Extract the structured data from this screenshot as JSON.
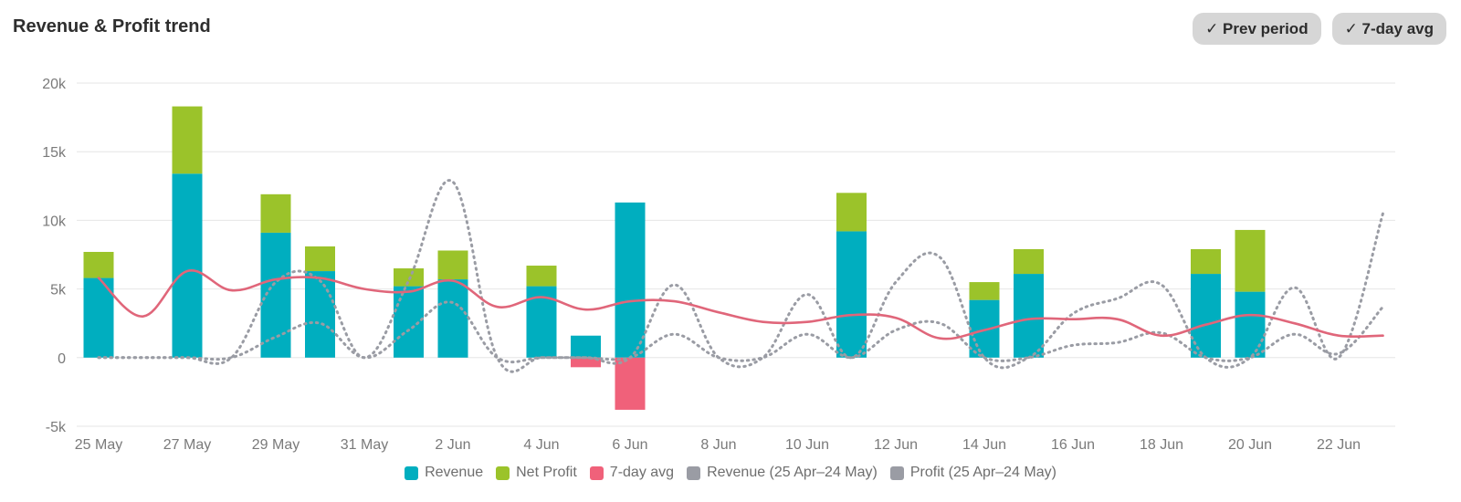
{
  "header": {
    "title": "Revenue & Profit trend",
    "toggles": [
      {
        "label": "✓ Prev period"
      },
      {
        "label": "✓ 7-day avg"
      }
    ]
  },
  "colors": {
    "revenue": "#00aebf",
    "profit": "#9bc32a",
    "negative": "#f0617a",
    "avg": "#e0667a",
    "prev": "#9a9ca4",
    "grid": "#e6e6e6"
  },
  "chart_data": {
    "type": "bar",
    "title": "Revenue & Profit trend",
    "ylim": [
      -5000,
      20000
    ],
    "yticks": [
      {
        "value": -5000,
        "label": "-5k"
      },
      {
        "value": 0,
        "label": "0"
      },
      {
        "value": 5000,
        "label": "5k"
      },
      {
        "value": 10000,
        "label": "10k"
      },
      {
        "value": 15000,
        "label": "15k"
      },
      {
        "value": 20000,
        "label": "20k"
      }
    ],
    "xticks": [
      "25 May",
      "27 May",
      "29 May",
      "31 May",
      "2 Jun",
      "4 Jun",
      "6 Jun",
      "8 Jun",
      "10 Jun",
      "12 Jun",
      "14 Jun",
      "16 Jun",
      "18 Jun",
      "20 Jun",
      "22 Jun"
    ],
    "x": [
      "25 May",
      "26 May",
      "27 May",
      "28 May",
      "29 May",
      "30 May",
      "31 May",
      "1 Jun",
      "2 Jun",
      "3 Jun",
      "4 Jun",
      "5 Jun",
      "6 Jun",
      "7 Jun",
      "8 Jun",
      "9 Jun",
      "10 Jun",
      "11 Jun",
      "12 Jun",
      "13 Jun",
      "14 Jun",
      "15 Jun",
      "16 Jun",
      "17 Jun",
      "18 Jun",
      "19 Jun",
      "20 Jun",
      "21 Jun",
      "22 Jun",
      "23 Jun"
    ],
    "legend": [
      "Revenue",
      "Net Profit",
      "7-day avg",
      "Revenue (25 Apr–24 May)",
      "Profit (25 Apr–24 May)"
    ],
    "legend_position": "bottom",
    "grid": true,
    "series": [
      {
        "name": "Revenue",
        "type": "bar",
        "stack": "main",
        "values": [
          5800,
          0,
          13400,
          0,
          9100,
          6300,
          0,
          5200,
          5700,
          0,
          5200,
          1600,
          11300,
          0,
          0,
          0,
          0,
          9200,
          0,
          0,
          4200,
          6100,
          0,
          0,
          0,
          6100,
          4800,
          0,
          0,
          0
        ]
      },
      {
        "name": "Net Profit",
        "type": "bar",
        "stack": "main",
        "values": [
          1900,
          0,
          4900,
          0,
          2800,
          1800,
          0,
          1300,
          2100,
          0,
          1500,
          -700,
          -3800,
          0,
          0,
          0,
          0,
          2800,
          0,
          0,
          1300,
          1800,
          0,
          0,
          0,
          1800,
          4500,
          0,
          0,
          0
        ]
      },
      {
        "name": "7-day avg",
        "type": "line",
        "values": [
          5800,
          3000,
          6300,
          4900,
          5700,
          5800,
          5000,
          4800,
          5600,
          3700,
          4400,
          3500,
          4100,
          4100,
          3300,
          2600,
          2600,
          3100,
          2900,
          1400,
          2000,
          2800,
          2800,
          2800,
          1600,
          2400,
          3100,
          2500,
          1600,
          1600
        ]
      },
      {
        "name": "Revenue (25 Apr–24 May)",
        "type": "line",
        "dashed": true,
        "values": [
          0,
          0,
          0,
          0,
          5500,
          5600,
          0,
          5600,
          12800,
          0,
          0,
          0,
          0,
          5300,
          0,
          0,
          4600,
          0,
          5500,
          7300,
          0,
          0,
          3200,
          4300,
          5300,
          0,
          0,
          5100,
          0,
          10500
        ]
      },
      {
        "name": "Profit (25 Apr–24 May)",
        "type": "line",
        "dashed": true,
        "values": [
          0,
          0,
          0,
          0,
          1500,
          2500,
          0,
          2000,
          4000,
          0,
          0,
          0,
          0,
          1700,
          0,
          0,
          1700,
          0,
          2000,
          2500,
          0,
          0,
          900,
          1100,
          1800,
          0,
          0,
          1700,
          300,
          3700
        ]
      }
    ]
  }
}
